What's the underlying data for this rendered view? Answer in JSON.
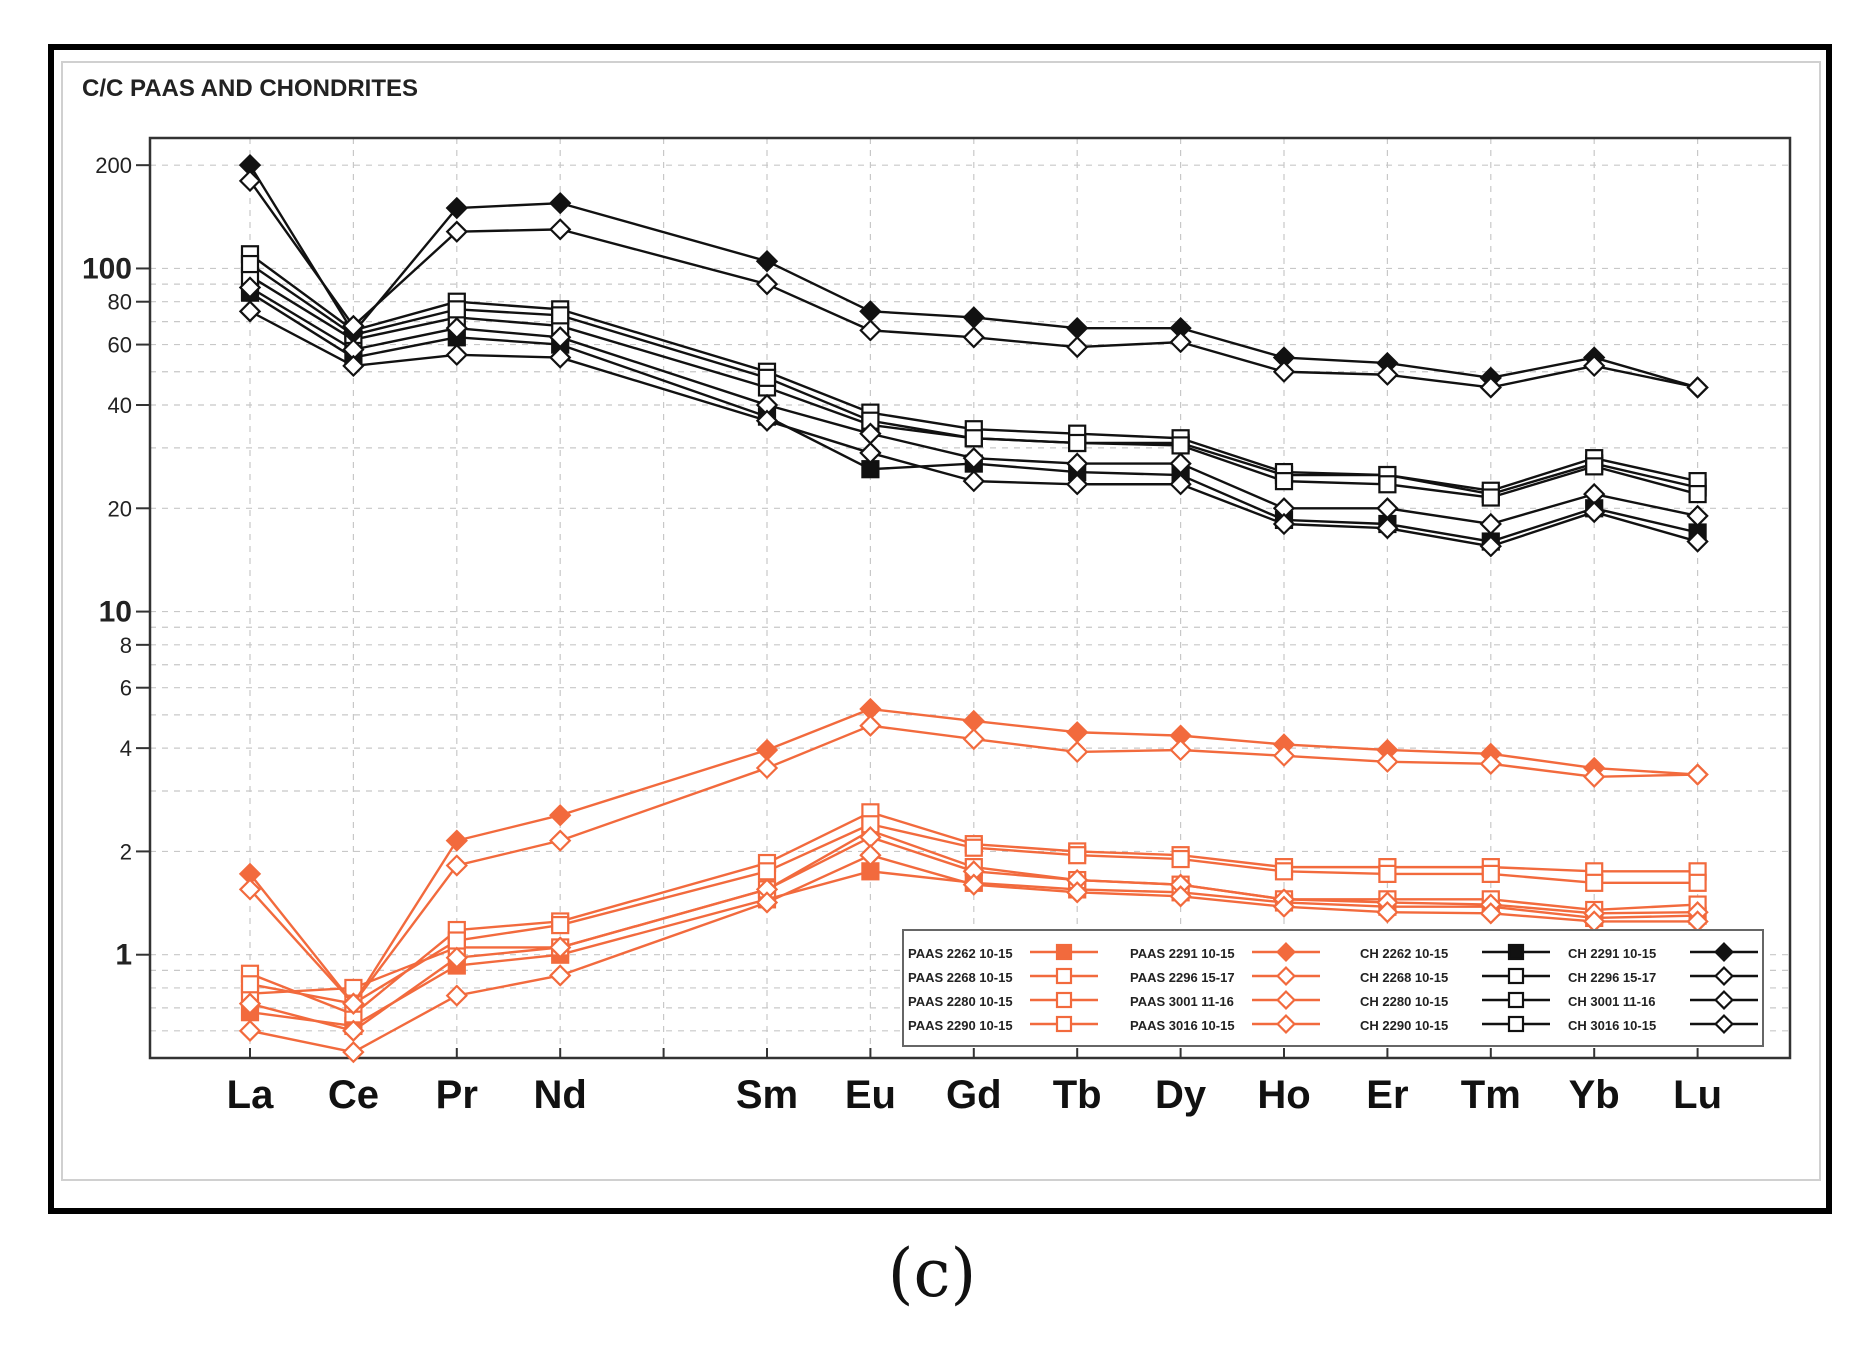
{
  "caption": "(c)",
  "chart_data": {
    "type": "line",
    "scale": "log",
    "title": "C/C PAAS AND CHONDRITES",
    "xlabel": "",
    "ylabel": "",
    "ylim": [
      0.5,
      240
    ],
    "categories": [
      "La",
      "Ce",
      "Pr",
      "Nd",
      "Sm",
      "Eu",
      "Gd",
      "Tb",
      "Dy",
      "Ho",
      "Er",
      "Tm",
      "Yb",
      "Lu"
    ],
    "category_slots": [
      0,
      1,
      2,
      3,
      5,
      6,
      7,
      8,
      9,
      10,
      11,
      12,
      13,
      14
    ],
    "yticks": [
      {
        "value": 200,
        "label": "200",
        "major": false
      },
      {
        "value": 100,
        "label": "100",
        "major": true
      },
      {
        "value": 80,
        "label": "80",
        "major": false
      },
      {
        "value": 60,
        "label": "60",
        "major": false
      },
      {
        "value": 40,
        "label": "40",
        "major": false
      },
      {
        "value": 20,
        "label": "20",
        "major": false
      },
      {
        "value": 10,
        "label": "10",
        "major": true
      },
      {
        "value": 8,
        "label": "8",
        "major": false
      },
      {
        "value": 6,
        "label": "6",
        "major": false
      },
      {
        "value": 4,
        "label": "4",
        "major": false
      },
      {
        "value": 2,
        "label": "2",
        "major": false
      },
      {
        "value": 1,
        "label": "1",
        "major": true
      }
    ],
    "grid": true,
    "legend_position": "bottom-right",
    "colors": {
      "paas": "#f26a3d",
      "ch": "#111111",
      "frame": "#333333",
      "grid": "#c8c8c8"
    },
    "series": [
      {
        "name": "PAAS 2262 10-15",
        "group": "paas",
        "marker": "square-filled",
        "values": [
          0.68,
          0.62,
          0.93,
          1.0,
          1.45,
          1.75,
          1.62,
          1.55,
          1.52,
          1.42,
          1.38,
          1.38,
          1.28,
          1.3
        ]
      },
      {
        "name": "PAAS 2268 10-15",
        "group": "paas",
        "marker": "square-open",
        "values": [
          0.77,
          0.8,
          1.05,
          1.05,
          1.55,
          2.3,
          1.8,
          1.65,
          1.6,
          1.45,
          1.45,
          1.45,
          1.35,
          1.4
        ]
      },
      {
        "name": "PAAS 2280 10-15",
        "group": "paas",
        "marker": "square-open",
        "values": [
          0.88,
          0.67,
          1.18,
          1.25,
          1.85,
          2.6,
          2.1,
          2.0,
          1.95,
          1.8,
          1.8,
          1.8,
          1.75,
          1.75
        ]
      },
      {
        "name": "PAAS 2290 10-15",
        "group": "paas",
        "marker": "square-open",
        "values": [
          0.82,
          0.72,
          1.1,
          1.22,
          1.75,
          2.4,
          2.05,
          1.95,
          1.9,
          1.75,
          1.72,
          1.72,
          1.62,
          1.62
        ]
      },
      {
        "name": "PAAS 2291 10-15",
        "group": "paas",
        "marker": "diamond-filled",
        "values": [
          1.72,
          0.72,
          2.15,
          2.55,
          3.95,
          5.2,
          4.8,
          4.45,
          4.35,
          4.1,
          3.95,
          3.85,
          3.5,
          3.35
        ]
      },
      {
        "name": "PAAS 2296 15-17",
        "group": "paas",
        "marker": "diamond-open",
        "values": [
          0.72,
          0.6,
          0.98,
          1.05,
          1.55,
          2.2,
          1.75,
          1.65,
          1.6,
          1.45,
          1.42,
          1.4,
          1.32,
          1.33
        ]
      },
      {
        "name": "PAAS 3001 11-16",
        "group": "paas",
        "marker": "diamond-open",
        "values": [
          0.6,
          0.52,
          0.76,
          0.87,
          1.42,
          1.95,
          1.6,
          1.52,
          1.48,
          1.38,
          1.33,
          1.32,
          1.25,
          1.25
        ]
      },
      {
        "name": "PAAS 3016 10-15",
        "group": "paas",
        "marker": "diamond-open",
        "values": [
          1.55,
          0.72,
          1.82,
          2.15,
          3.5,
          4.65,
          4.25,
          3.9,
          3.95,
          3.8,
          3.65,
          3.6,
          3.3,
          3.35
        ]
      },
      {
        "name": "CH 2262 10-15",
        "group": "ch",
        "marker": "square-filled",
        "values": [
          85,
          55,
          63,
          60,
          37,
          26,
          27,
          25.5,
          25,
          18.5,
          18,
          16,
          20,
          17
        ]
      },
      {
        "name": "CH 2268 10-15",
        "group": "ch",
        "marker": "square-open",
        "values": [
          95,
          62,
          72,
          68,
          45,
          35,
          32,
          31,
          31,
          25,
          25,
          22,
          27,
          23
        ]
      },
      {
        "name": "CH 2280 10-15",
        "group": "ch",
        "marker": "square-open",
        "values": [
          110,
          66,
          80,
          76,
          50,
          38,
          34,
          33,
          32,
          25.5,
          25,
          22.5,
          28,
          24
        ]
      },
      {
        "name": "CH 2290 10-15",
        "group": "ch",
        "marker": "square-open",
        "values": [
          103,
          64,
          76,
          73,
          48,
          36,
          32,
          31,
          30.5,
          24,
          23.5,
          21.5,
          26.5,
          22
        ]
      },
      {
        "name": "CH 2291 10-15",
        "group": "ch",
        "marker": "diamond-filled",
        "values": [
          200,
          65,
          150,
          155,
          105,
          75,
          72,
          67,
          67,
          55,
          53,
          48,
          55,
          45
        ]
      },
      {
        "name": "CH 2296 15-17",
        "group": "ch",
        "marker": "diamond-open",
        "values": [
          88,
          58,
          67,
          63,
          40,
          33,
          28,
          27,
          27,
          20,
          20,
          18,
          22,
          19
        ]
      },
      {
        "name": "CH 3001 11-16",
        "group": "ch",
        "marker": "diamond-open",
        "values": [
          75,
          52,
          56,
          55,
          36,
          29,
          24,
          23.5,
          23.5,
          18,
          17.5,
          15.5,
          19.5,
          16
        ]
      },
      {
        "name": "CH 3016 10-15",
        "group": "ch",
        "marker": "diamond-open",
        "values": [
          180,
          68,
          128,
          130,
          90,
          66,
          63,
          59,
          61,
          50,
          49,
          45,
          52,
          45
        ]
      }
    ]
  }
}
